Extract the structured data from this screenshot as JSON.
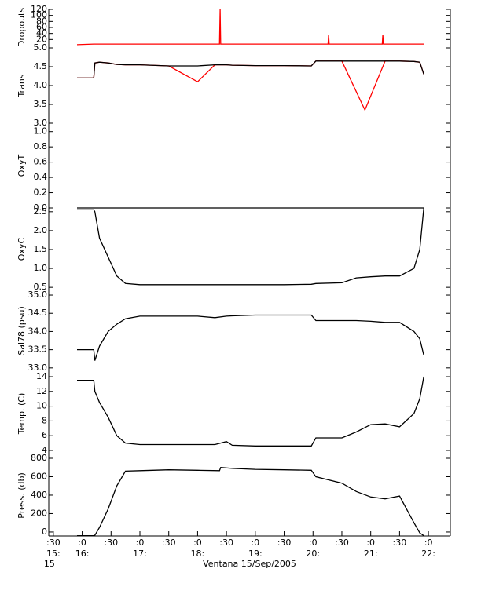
{
  "chart_data": [
    {
      "type": "line",
      "ylabel": "Dropouts",
      "xlim": [
        15.42,
        22.38
      ],
      "ylim": [
        0,
        120
      ],
      "yticks": [
        20,
        40,
        60,
        80,
        100,
        120
      ],
      "x": [
        15.91,
        16.2,
        18.38,
        18.39,
        18.4,
        20.26,
        20.27,
        20.28,
        21.2,
        21.21,
        21.22,
        21.92
      ],
      "series": [
        {
          "color": "#ff0000",
          "values": [
            3,
            5,
            5,
            120,
            5,
            5,
            35,
            5,
            5,
            35,
            5,
            5
          ]
        }
      ]
    },
    {
      "type": "line",
      "ylabel": "Trans",
      "xlim": [
        15.42,
        22.38
      ],
      "ylim": [
        3.0,
        5.0
      ],
      "yticks": [
        {
          "value": 3.0,
          "label": "3.0"
        },
        3.5,
        {
          "value": 4.0,
          "label": "4.0"
        },
        4.5,
        {
          "value": 5.0,
          "label": "5.0"
        }
      ],
      "x": [
        15.91,
        16.2,
        16.22,
        16.3,
        16.45,
        16.6,
        16.75,
        17.0,
        17.5,
        18.0,
        18.3,
        18.5,
        18.6,
        19.0,
        19.5,
        19.97,
        20.05,
        20.5,
        20.9,
        21.25,
        21.5,
        21.75,
        21.85,
        21.92
      ],
      "series": [
        {
          "color": "#ff0000",
          "values": [
            4.2,
            4.2,
            4.6,
            4.62,
            4.6,
            4.56,
            4.55,
            4.55,
            4.52,
            4.1,
            4.55,
            4.55,
            4.54,
            4.53,
            4.53,
            4.52,
            4.65,
            4.65,
            3.35,
            4.65,
            4.65,
            4.64,
            4.62,
            4.3
          ]
        },
        {
          "color": "#000000",
          "values": [
            4.2,
            4.2,
            4.6,
            4.62,
            4.6,
            4.56,
            4.55,
            4.55,
            4.52,
            4.52,
            4.55,
            4.55,
            4.54,
            4.53,
            4.53,
            4.52,
            4.65,
            4.65,
            4.65,
            4.65,
            4.65,
            4.64,
            4.62,
            4.3
          ]
        }
      ]
    },
    {
      "type": "line",
      "ylabel": "OxyT",
      "xlim": [
        15.42,
        22.38
      ],
      "ylim": [
        0,
        1.11
      ],
      "yticks": [
        {
          "value": 0.0,
          "label": "0.0"
        },
        0.2,
        0.4,
        0.6,
        0.8,
        {
          "value": 1.0,
          "label": "1.0"
        }
      ],
      "x": [
        15.91,
        21.92
      ],
      "series": [
        {
          "color": "#000000",
          "values": [
            0,
            0
          ]
        }
      ]
    },
    {
      "type": "line",
      "ylabel": "OxyC",
      "xlim": [
        15.42,
        22.38
      ],
      "ylim": [
        0.42,
        2.6
      ],
      "yticks": [
        0.5,
        {
          "value": 1.0,
          "label": "1.0"
        },
        1.5,
        {
          "value": 2.0,
          "label": "2.0"
        },
        2.5
      ],
      "x": [
        15.91,
        16.2,
        16.22,
        16.3,
        16.45,
        16.6,
        16.75,
        17.0,
        17.5,
        18.0,
        18.5,
        19.0,
        19.5,
        19.97,
        20.05,
        20.5,
        20.75,
        21.0,
        21.25,
        21.5,
        21.75,
        21.85,
        21.92
      ],
      "series": [
        {
          "color": "#000000",
          "values": [
            2.55,
            2.55,
            2.5,
            1.8,
            1.3,
            0.8,
            0.6,
            0.57,
            0.57,
            0.57,
            0.57,
            0.57,
            0.57,
            0.58,
            0.6,
            0.62,
            0.75,
            0.78,
            0.8,
            0.8,
            1.0,
            1.5,
            2.6
          ]
        }
      ]
    },
    {
      "type": "line",
      "ylabel": "Sal78 (psu)",
      "xlim": [
        15.42,
        22.38
      ],
      "ylim": [
        32.91,
        35.13
      ],
      "yticks": [
        {
          "value": 33.0,
          "label": "33.0"
        },
        33.5,
        {
          "value": 34.0,
          "label": "34.0"
        },
        34.5,
        {
          "value": 35.0,
          "label": "35.0"
        }
      ],
      "x": [
        15.91,
        16.2,
        16.22,
        16.3,
        16.45,
        16.6,
        16.75,
        17.0,
        17.5,
        18.0,
        18.3,
        18.5,
        18.6,
        19.0,
        19.5,
        19.97,
        20.05,
        20.5,
        20.75,
        21.0,
        21.25,
        21.5,
        21.75,
        21.85,
        21.92
      ],
      "series": [
        {
          "color": "#000000",
          "values": [
            33.5,
            33.5,
            33.2,
            33.6,
            34.0,
            34.2,
            34.35,
            34.42,
            34.42,
            34.42,
            34.38,
            34.42,
            34.43,
            34.45,
            34.45,
            34.45,
            34.3,
            34.3,
            34.3,
            34.28,
            34.25,
            34.25,
            34.0,
            33.8,
            33.35
          ]
        }
      ]
    },
    {
      "type": "line",
      "ylabel": "Temp. (C)",
      "xlim": [
        15.42,
        22.38
      ],
      "ylim": [
        3.36,
        14.64
      ],
      "yticks": [
        4,
        6,
        8,
        10,
        12,
        14
      ],
      "x": [
        15.91,
        16.2,
        16.22,
        16.3,
        16.45,
        16.6,
        16.75,
        17.0,
        17.5,
        18.0,
        18.3,
        18.5,
        18.6,
        19.0,
        19.5,
        19.97,
        20.05,
        20.5,
        20.75,
        21.0,
        21.25,
        21.5,
        21.75,
        21.85,
        21.92
      ],
      "series": [
        {
          "color": "#000000",
          "values": [
            13.5,
            13.5,
            12,
            10.5,
            8.5,
            6,
            5,
            4.8,
            4.8,
            4.8,
            4.8,
            5.2,
            4.7,
            4.6,
            4.6,
            4.6,
            5.7,
            5.7,
            6.5,
            7.5,
            7.6,
            7.2,
            9,
            11,
            14
          ]
        }
      ]
    },
    {
      "type": "line",
      "ylabel": "Press. (db)",
      "xlim": [
        15.42,
        22.38
      ],
      "ylim": [
        -43,
        834
      ],
      "yticks": [
        0,
        200,
        400,
        600,
        800
      ],
      "x": [
        15.91,
        16.2,
        16.22,
        16.3,
        16.45,
        16.6,
        16.75,
        17.0,
        17.5,
        18.0,
        18.38,
        18.4,
        18.6,
        19.0,
        19.5,
        19.97,
        20.05,
        20.5,
        20.75,
        21.0,
        21.25,
        21.5,
        21.75,
        21.85,
        21.92
      ],
      "series": [
        {
          "color": "#000000",
          "values": [
            -40,
            -40,
            -35,
            50,
            250,
            500,
            660,
            665,
            675,
            670,
            665,
            700,
            690,
            680,
            675,
            670,
            600,
            530,
            440,
            380,
            360,
            390,
            100,
            -10,
            -40
          ]
        }
      ],
      "xticks": [
        {
          "value": 15.5,
          "label": ":30"
        },
        {
          "value": 16,
          "label": ":0"
        },
        {
          "value": 16.5,
          "label": ":30"
        },
        {
          "value": 17,
          "label": ":0"
        },
        {
          "value": 17.5,
          "label": ":30"
        },
        {
          "value": 18,
          "label": ":0"
        },
        {
          "value": 18.5,
          "label": ":30"
        },
        {
          "value": 19,
          "label": ":0"
        },
        {
          "value": 19.5,
          "label": ":30"
        },
        {
          "value": 20,
          "label": ":0"
        },
        {
          "value": 20.5,
          "label": ":30"
        },
        {
          "value": 21,
          "label": ":0"
        },
        {
          "value": 21.5,
          "label": ":30"
        },
        {
          "value": 22,
          "label": ":0"
        }
      ],
      "xtick_hours": [
        "15:",
        "16:",
        null,
        "17:",
        null,
        "18:",
        null,
        "19:",
        null,
        "20:",
        null,
        "21:",
        null,
        "22:"
      ],
      "xtick_day": "15",
      "xlabel": "Ventana 15/Sep/2005"
    }
  ]
}
